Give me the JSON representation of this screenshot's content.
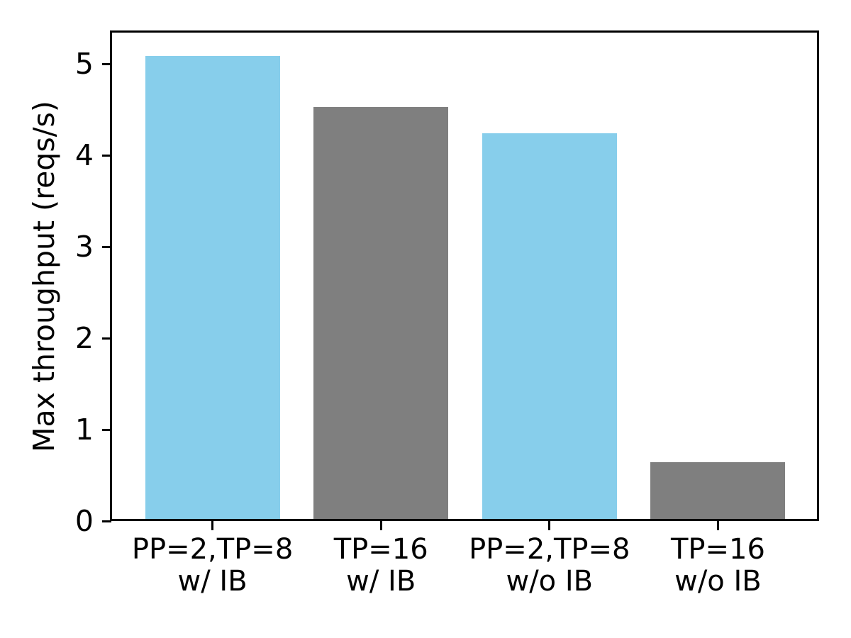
{
  "chart_data": {
    "type": "bar",
    "title": "",
    "xlabel": "",
    "ylabel": "Max throughput (reqs/s)",
    "categories": [
      [
        "PP=2,TP=8",
        "w/ IB"
      ],
      [
        "TP=16",
        "w/ IB"
      ],
      [
        "PP=2,TP=8",
        "w/o IB"
      ],
      [
        "TP=16",
        "w/o IB"
      ]
    ],
    "values": [
      5.09,
      4.53,
      4.24,
      0.64
    ],
    "bar_colors": [
      "#87ceeb",
      "#7f7f7f",
      "#87ceeb",
      "#7f7f7f"
    ],
    "yticks": [
      0,
      1,
      2,
      3,
      4,
      5
    ],
    "ylim": [
      0,
      5.35
    ],
    "xlim": [
      -0.6,
      3.6
    ],
    "bar_width": 0.8,
    "grid": false,
    "legend": "none",
    "axis_color": "#000000",
    "background_color": "#ffffff"
  }
}
